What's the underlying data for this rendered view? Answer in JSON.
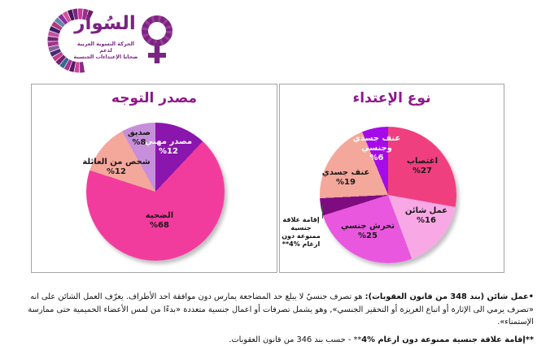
{
  "logo": {
    "wordmark": "السُوار",
    "tagline_line1": "الحركة النسوية العربية لدعم",
    "tagline_line2": "ضحايا الإعتداءات الجنسية",
    "brand_color": "#7B2483",
    "arc_palette": [
      "#6B1E5F",
      "#9C2B8F",
      "#C03A96",
      "#7B2483",
      "#4A1558",
      "#D2519F",
      "#8E2D9C",
      "#5E87A8",
      "#B03A7E",
      "#3E1D6B",
      "#C84FA0",
      "#6E2573",
      "#A23389",
      "#8A5FA0",
      "#472B77",
      "#BE3F8C",
      "#75216F",
      "#2F6B8E",
      "#A82F93",
      "#5C1A62",
      "#C9479B",
      "#8B2A85"
    ]
  },
  "chart_data": [
    {
      "type": "pie",
      "title": "مصدر التوجه",
      "title_color": "#8E188B",
      "legend": "none (labels inside slices)",
      "slices": [
        {
          "label": "مصدر مهني",
          "value": 12,
          "display": "%12",
          "color": "#8A16AD",
          "text_color": "#FFFFFF"
        },
        {
          "label": "الضحية",
          "value": 68,
          "display": "%68",
          "color": "#F23C9D",
          "text_color": "#1A1A1A"
        },
        {
          "label": "شخص من العائلة",
          "value": 12,
          "display": "%12",
          "color": "#F4A79B",
          "text_color": "#1A1A1A"
        },
        {
          "label": "صديق",
          "value": 8,
          "display": "%8",
          "color": "#C78FDB",
          "text_color": "#1A1A1A"
        }
      ]
    },
    {
      "type": "pie",
      "title": "نوع الإعتداء",
      "title_color": "#8E188B",
      "legend": "none (labels inside slices, one external callout)",
      "slices": [
        {
          "label": "اغتصاب",
          "value": 27,
          "display": "%27",
          "color": "#EF3F7F",
          "text_color": "#1A1A1A"
        },
        {
          "label": "عمل شائن",
          "value": 16,
          "display": "%16",
          "color": "#F9A8E6",
          "text_color": "#1A1A1A"
        },
        {
          "label": "تحرش جنسي",
          "value": 25,
          "display": "%25",
          "color": "#E957DE",
          "text_color": "#1A1A1A"
        },
        {
          "label": "إقامة علاقة جنسية ممنوعة دون ارغام",
          "value": 4,
          "display": "%4**",
          "color": "#7E0C80",
          "text_color": "#1A1A1A"
        },
        {
          "label": "عنف جسدي",
          "value": 19,
          "display": "%19",
          "color": "#F4A79B",
          "text_color": "#1A1A1A"
        },
        {
          "label": "عنف جسدي وجنسي",
          "value": 6,
          "display": "%6",
          "color": "#A50BE8",
          "text_color": "#FFFFFF",
          "label_lines": [
            "عنف جسدي",
            "وجنسي"
          ]
        }
      ],
      "callout": {
        "line1": "إقامة علاقة جنسية",
        "line2": "ممنوعة دون",
        "line3": "ارغام  %4**"
      }
    }
  ],
  "footnotes": {
    "note1_bold": "•عمل شائن (بند 348 من قانون العقوبات):",
    "note1_rest": " هو تصرف جنسيٌ لا يبلغ حد المضاجعة يمارس دون موافقة احد الأطراف. يعرّف العمل الشائن على انه «تصرف يرمي الى الإثارة أو اتباع الغريزة أو التحقير الجنسي», وهو يشمل تصرفات أو اعمال جنسية متعددة «بدءًا من لمس الأعضاء الحميمية حتى ممارسة الإستمناء».",
    "note2_bold": "**إقامة علاقة جنسية ممنوعة دون ارغام  %4",
    "note2_rest": "** - حسب بند 346 من قانون العقوبات."
  }
}
